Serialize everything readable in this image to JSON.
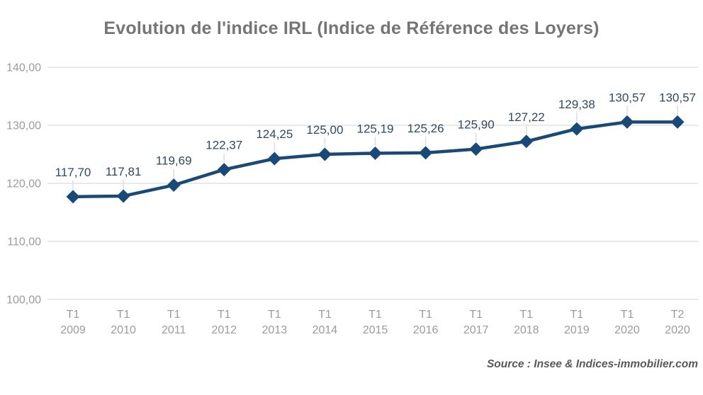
{
  "title": "Evolution de l'indice IRL (Indice de Référence des Loyers)",
  "source": "Source : Insee & Indices-immobilier.com",
  "colors": {
    "series": "#17497B",
    "data_label": "#2E4A63",
    "title": "#757575",
    "axis_label": "#9B9B9B",
    "gridline": "#DCDCDC",
    "leader_line": "#DDDDDD",
    "background": "#FFFFFF",
    "source_text": "#58595B"
  },
  "chart_data": {
    "type": "line",
    "title": "Evolution de l'indice IRL (Indice de Référence des Loyers)",
    "categories": [
      "T1 2009",
      "T1 2010",
      "T1 2011",
      "T1 2012",
      "T1 2013",
      "T1 2014",
      "T1 2015",
      "T1 2016",
      "T1 2017",
      "T1 2018",
      "T1 2019",
      "T1 2020",
      "T2 2020"
    ],
    "values": [
      117.7,
      117.81,
      119.69,
      122.37,
      124.25,
      125.0,
      125.19,
      125.26,
      125.9,
      127.22,
      129.38,
      130.57,
      130.57
    ],
    "point_labels": [
      "117,70",
      "117,81",
      "119,69",
      "122,37",
      "124,25",
      "125,00",
      "125,19",
      "125,26",
      "125,90",
      "127,22",
      "129,38",
      "130,57",
      "130,57"
    ],
    "xlabel": "",
    "ylabel": "",
    "ylim": [
      100,
      140
    ],
    "y_ticks": [
      {
        "value": 140,
        "label": "140,00"
      },
      {
        "value": 130,
        "label": "130,00"
      },
      {
        "value": 120,
        "label": "120,00"
      },
      {
        "value": 110,
        "label": "110,00"
      },
      {
        "value": 100,
        "label": "100,00"
      }
    ],
    "grid": true,
    "legend_position": "none",
    "marker": "diamond",
    "source": "Source : Insee & Indices-immobilier.com"
  }
}
